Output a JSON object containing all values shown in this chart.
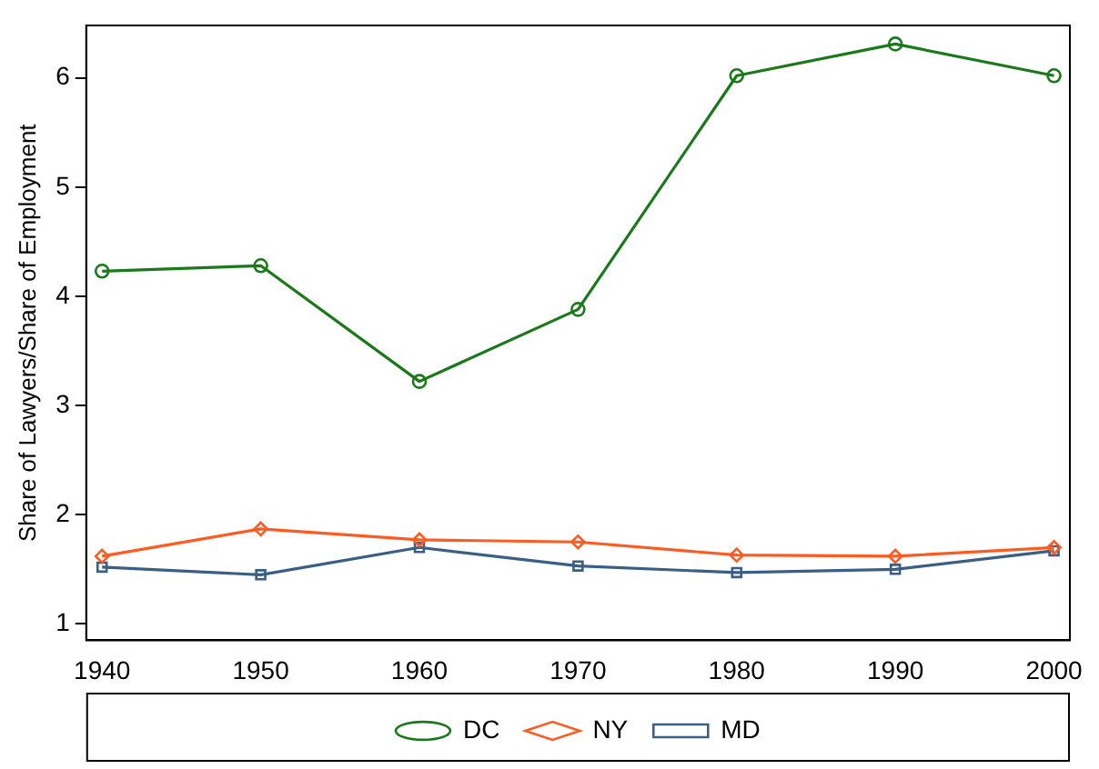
{
  "chart_data": {
    "type": "line",
    "ylabel": "Share of Lawyers/Share of Employment",
    "x": [
      1940,
      1950,
      1960,
      1970,
      1980,
      1990,
      2000
    ],
    "series": [
      {
        "name": "DC",
        "color": "#1a7a1a",
        "marker": "circle",
        "values": [
          4.23,
          4.28,
          3.22,
          3.88,
          6.02,
          6.31,
          6.02
        ]
      },
      {
        "name": "NY",
        "color": "#ff5a1f",
        "marker": "diamond",
        "values": [
          1.62,
          1.87,
          1.77,
          1.75,
          1.63,
          1.62,
          1.7
        ]
      },
      {
        "name": "MD",
        "color": "#3a5f85",
        "marker": "square",
        "values": [
          1.52,
          1.45,
          1.7,
          1.53,
          1.47,
          1.5,
          1.67
        ]
      }
    ],
    "xlim": [
      1939,
      2001
    ],
    "xticks": [
      1940,
      1950,
      1960,
      1970,
      1980,
      1990,
      2000
    ],
    "ylim": [
      0.85,
      6.48
    ],
    "yticks": [
      1,
      2,
      3,
      4,
      5,
      6
    ],
    "grid": false,
    "legend": "bottom",
    "line_style": "solid"
  }
}
